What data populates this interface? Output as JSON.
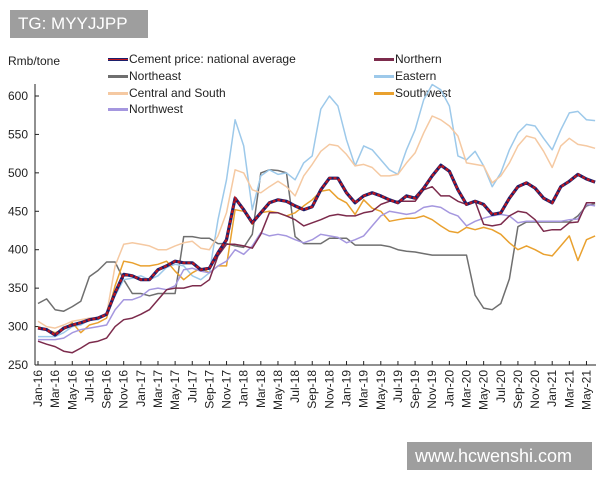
{
  "watermarks": {
    "top": "TG: MYYJJPP",
    "bottom": "www.hcwenshi.com"
  },
  "chart_data": {
    "type": "line",
    "title": "",
    "ylabel": "Rmb/tone",
    "xlabel": "",
    "ylim": [
      250,
      620
    ],
    "yticks": [
      "600",
      "550",
      "500",
      "450",
      "400",
      "350",
      "300",
      "250"
    ],
    "xticks": [
      "Jan-16",
      "Mar-16",
      "May-16",
      "Jul-16",
      "Sep-16",
      "Nov-16",
      "Jan-17",
      "Mar-17",
      "May-17",
      "Jul-17",
      "Sep-17",
      "Nov-17",
      "Jan-18",
      "Mar-18",
      "May-18",
      "Jul-18",
      "Sep-18",
      "Nov-18",
      "Jan-19",
      "Mar-19",
      "May-19",
      "Jul-19",
      "Sep-19",
      "Nov-19",
      "Jan-20",
      "Mar-20",
      "May-20",
      "Jul-20",
      "Sep-20",
      "Nov-20",
      "Jan-21",
      "Mar-21",
      "May-21"
    ],
    "x": [
      "Jan-16",
      "Feb-16",
      "Mar-16",
      "Apr-16",
      "May-16",
      "Jun-16",
      "Jul-16",
      "Aug-16",
      "Sep-16",
      "Oct-16",
      "Nov-16",
      "Dec-16",
      "Jan-17",
      "Feb-17",
      "Mar-17",
      "Apr-17",
      "May-17",
      "Jun-17",
      "Jul-17",
      "Aug-17",
      "Sep-17",
      "Oct-17",
      "Nov-17",
      "Dec-17",
      "Jan-18",
      "Feb-18",
      "Mar-18",
      "Apr-18",
      "May-18",
      "Jun-18",
      "Jul-18",
      "Aug-18",
      "Sep-18",
      "Oct-18",
      "Nov-18",
      "Dec-18",
      "Jan-19",
      "Feb-19",
      "Mar-19",
      "Apr-19",
      "May-19",
      "Jun-19",
      "Jul-19",
      "Aug-19",
      "Sep-19",
      "Oct-19",
      "Nov-19",
      "Dec-19",
      "Jan-20",
      "Feb-20",
      "Mar-20",
      "Apr-20",
      "May-20",
      "Jun-20",
      "Jul-20",
      "Aug-20",
      "Sep-20",
      "Oct-20",
      "Nov-20",
      "Dec-20",
      "Jan-21",
      "Feb-21",
      "Mar-21",
      "Apr-21",
      "May-21",
      "Jun-21"
    ],
    "grid": false,
    "legend": "top",
    "series": [
      {
        "name": "Northeast",
        "color": "#6f6f6f",
        "values": [
          330,
          336,
          322,
          320,
          326,
          333,
          365,
          373,
          384,
          384,
          361,
          343,
          343,
          340,
          343,
          343,
          343,
          417,
          417,
          415,
          415,
          408,
          408,
          405,
          403,
          420,
          500,
          504,
          503,
          500,
          417,
          408,
          408,
          408,
          415,
          415,
          415,
          406,
          406,
          406,
          406,
          404,
          400,
          398,
          397,
          395,
          393,
          393,
          393,
          393,
          393,
          341,
          324,
          322,
          330,
          362,
          430,
          436,
          436,
          436,
          436,
          436,
          436,
          444,
          457,
          460
        ]
      },
      {
        "name": "Eastern",
        "color": "#9dc9ea",
        "values": [
          287,
          287,
          287,
          292,
          300,
          302,
          309,
          309,
          318,
          340,
          361,
          363,
          366,
          361,
          366,
          377,
          381,
          379,
          366,
          361,
          370,
          439,
          491,
          569,
          535,
          452,
          496,
          504,
          498,
          500,
          491,
          513,
          522,
          583,
          600,
          587,
          543,
          509,
          535,
          530,
          517,
          504,
          498,
          530,
          556,
          595,
          615,
          608,
          587,
          522,
          517,
          528,
          509,
          482,
          500,
          530,
          552,
          563,
          561,
          545,
          530,
          556,
          578,
          580,
          569,
          568
        ]
      },
      {
        "name": "Central and South",
        "color": "#f5c9a2",
        "values": [
          307,
          300,
          298,
          302,
          307,
          309,
          311,
          311,
          316,
          379,
          407,
          409,
          407,
          405,
          400,
          400,
          405,
          409,
          411,
          402,
          400,
          418,
          448,
          504,
          500,
          478,
          474,
          482,
          489,
          482,
          470,
          496,
          511,
          528,
          537,
          535,
          524,
          509,
          511,
          507,
          496,
          496,
          498,
          513,
          526,
          552,
          574,
          569,
          561,
          548,
          513,
          511,
          509,
          487,
          496,
          513,
          535,
          548,
          545,
          528,
          507,
          535,
          545,
          537,
          535,
          532
        ]
      },
      {
        "name": "Southwest",
        "color": "#e9a12f",
        "values": [
          300,
          296,
          292,
          296,
          305,
          292,
          302,
          305,
          311,
          353,
          385,
          383,
          379,
          379,
          381,
          385,
          372,
          361,
          370,
          376,
          370,
          379,
          379,
          452,
          450,
          433,
          448,
          450,
          448,
          444,
          448,
          457,
          465,
          476,
          478,
          467,
          461,
          446,
          465,
          454,
          450,
          437,
          439,
          441,
          441,
          444,
          439,
          431,
          424,
          422,
          429,
          426,
          429,
          426,
          420,
          409,
          400,
          405,
          400,
          394,
          392,
          405,
          418,
          386,
          413,
          418
        ]
      },
      {
        "name": "Northwest",
        "color": "#a597df",
        "values": [
          283,
          283,
          283,
          285,
          292,
          296,
          298,
          300,
          302,
          322,
          335,
          335,
          339,
          348,
          350,
          348,
          353,
          374,
          376,
          372,
          370,
          379,
          385,
          400,
          394,
          405,
          422,
          418,
          420,
          418,
          413,
          409,
          413,
          420,
          418,
          416,
          409,
          413,
          418,
          431,
          444,
          450,
          448,
          446,
          448,
          455,
          457,
          455,
          448,
          444,
          431,
          437,
          441,
          444,
          446,
          444,
          435,
          437,
          437,
          437,
          437,
          437,
          439,
          440,
          459,
          457
        ]
      },
      {
        "name": "Northern",
        "color": "#7c2b4c",
        "values": [
          281,
          277,
          274,
          268,
          266,
          272,
          279,
          281,
          285,
          300,
          309,
          311,
          316,
          322,
          335,
          348,
          350,
          350,
          353,
          353,
          361,
          392,
          407,
          407,
          405,
          402,
          420,
          448,
          448,
          444,
          439,
          431,
          435,
          439,
          444,
          446,
          444,
          444,
          448,
          450,
          459,
          463,
          463,
          463,
          463,
          478,
          482,
          470,
          470,
          463,
          459,
          463,
          433,
          431,
          433,
          444,
          450,
          448,
          439,
          424,
          426,
          426,
          435,
          436,
          461,
          461
        ]
      },
      {
        "name": "Cement price: national average",
        "color": "#1c1f6b",
        "accent": "#c0161e",
        "values": [
          298,
          296,
          289,
          298,
          302,
          305,
          309,
          311,
          316,
          344,
          368,
          366,
          361,
          361,
          374,
          379,
          385,
          383,
          383,
          374,
          376,
          396,
          413,
          467,
          452,
          435,
          448,
          461,
          465,
          463,
          457,
          452,
          456,
          478,
          493,
          493,
          474,
          461,
          470,
          474,
          470,
          465,
          461,
          470,
          467,
          480,
          496,
          510,
          502,
          478,
          459,
          463,
          459,
          446,
          448,
          467,
          482,
          487,
          480,
          467,
          461,
          482,
          489,
          498,
          492,
          488
        ]
      }
    ]
  }
}
